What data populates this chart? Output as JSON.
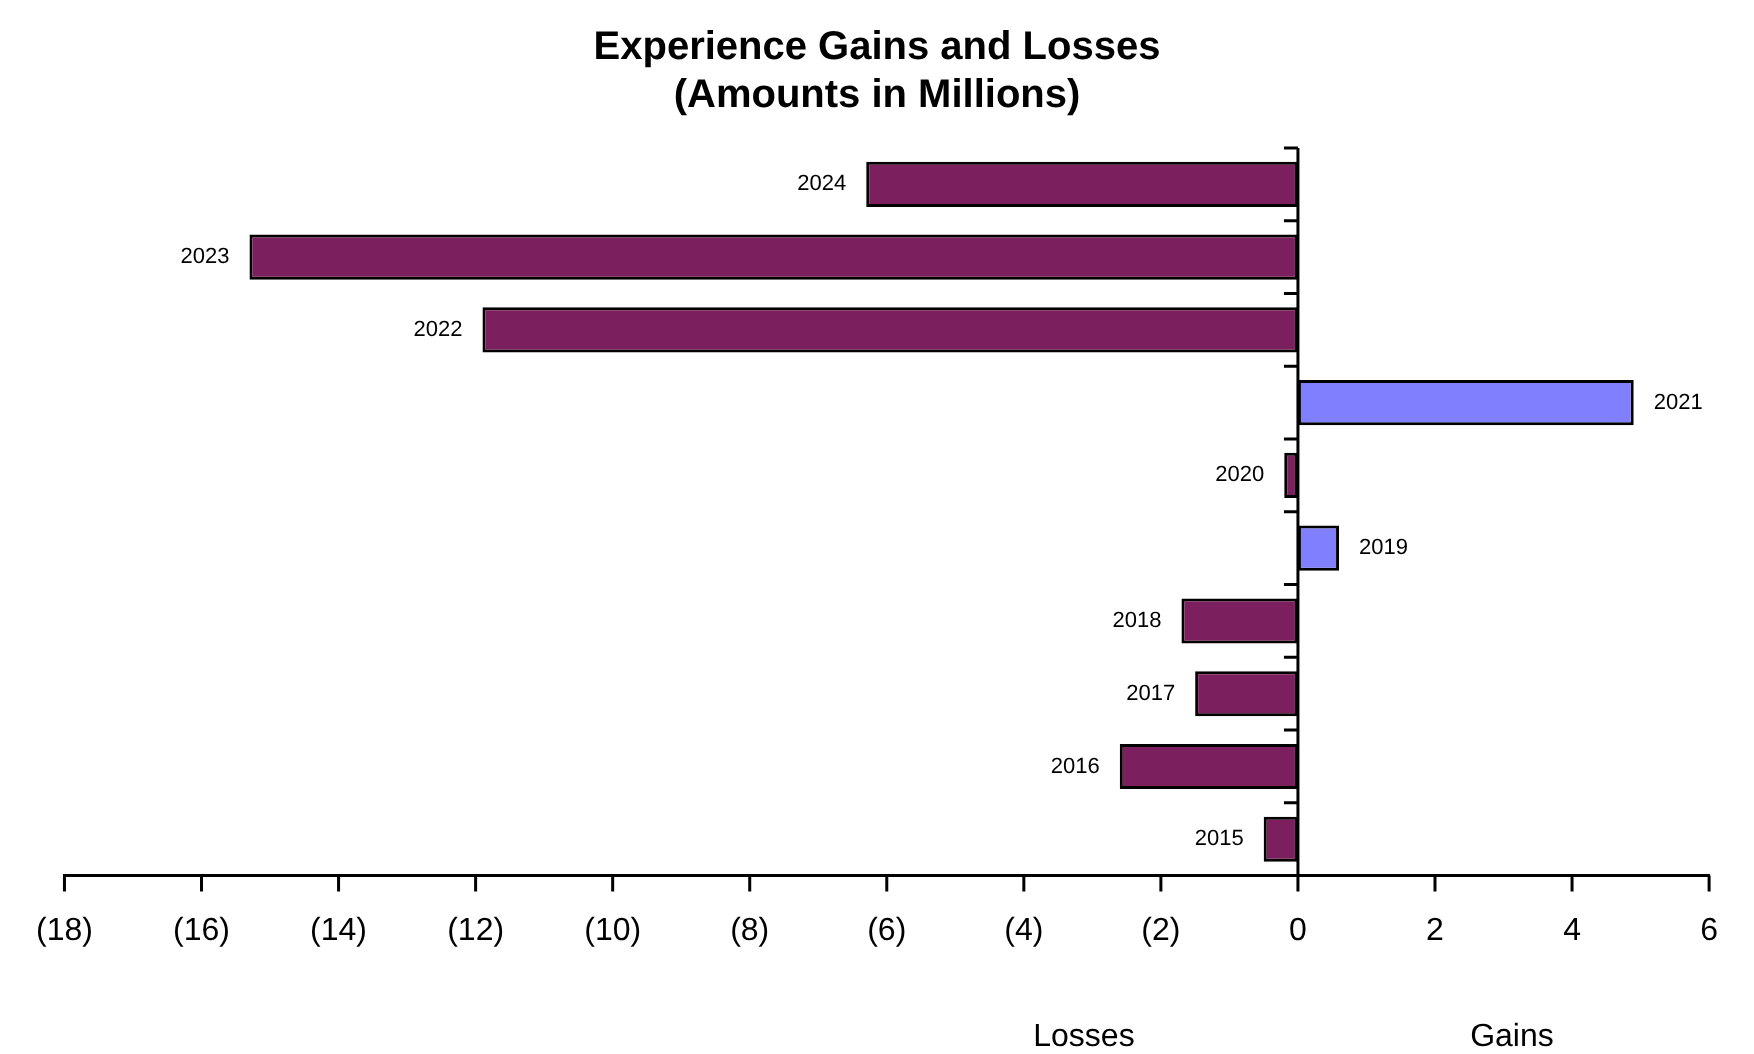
{
  "chart_data": {
    "type": "bar",
    "orientation": "horizontal",
    "title": "Experience Gains and Losses\n(Amounts in Millions)",
    "categories": [
      "2024",
      "2023",
      "2022",
      "2021",
      "2020",
      "2019",
      "2018",
      "2017",
      "2016",
      "2015"
    ],
    "values": [
      -6.3,
      -15.3,
      -11.9,
      4.9,
      -0.2,
      0.6,
      -1.7,
      -1.5,
      -2.6,
      -0.5
    ],
    "colors": [
      "#7b1f5e",
      "#7b1f5e",
      "#7b1f5e",
      "#8080ff",
      "#7b1f5e",
      "#8080ff",
      "#7b1f5e",
      "#7b1f5e",
      "#7b1f5e",
      "#7b1f5e"
    ],
    "xlim": [
      -18,
      6
    ],
    "xticks": [
      {
        "value": -18,
        "label": "(18)"
      },
      {
        "value": -16,
        "label": "(16)"
      },
      {
        "value": -14,
        "label": "(14)"
      },
      {
        "value": -12,
        "label": "(12)"
      },
      {
        "value": -10,
        "label": "(10)"
      },
      {
        "value": -8,
        "label": "(8)"
      },
      {
        "value": -6,
        "label": "(6)"
      },
      {
        "value": -4,
        "label": "(4)"
      },
      {
        "value": -2,
        "label": "(2)"
      },
      0,
      2,
      4,
      6
    ],
    "annotations": [
      "Losses",
      "Gains"
    ],
    "legend": false
  }
}
